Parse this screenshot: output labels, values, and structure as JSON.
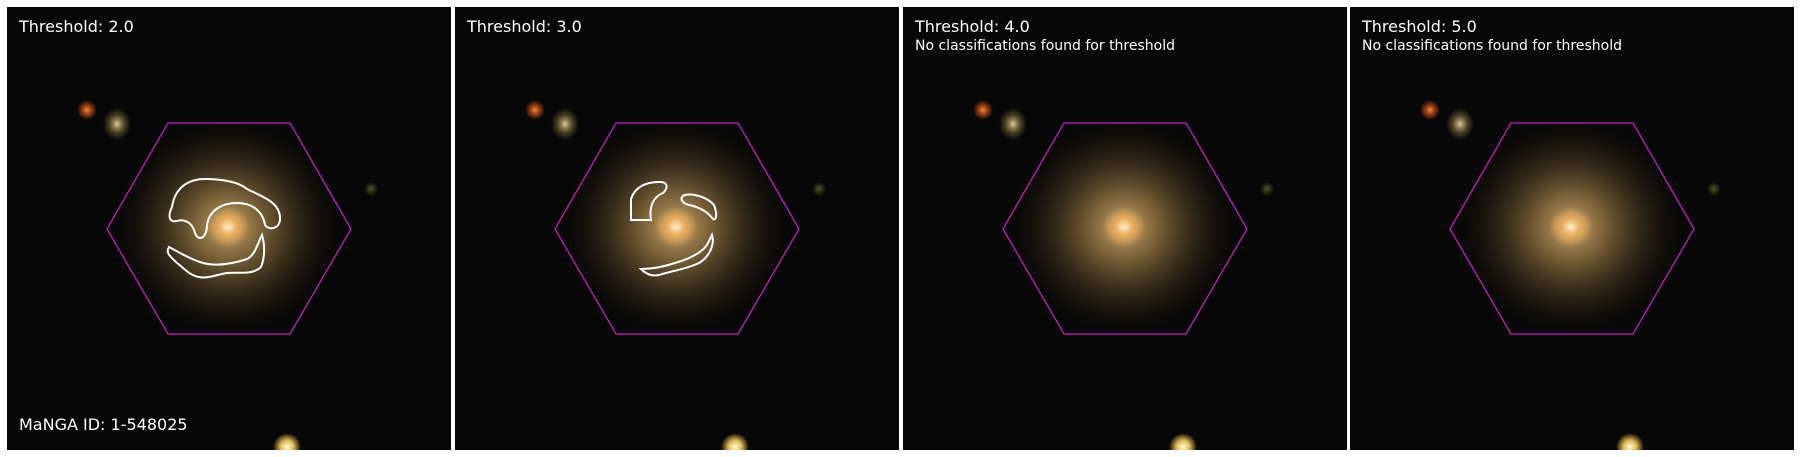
{
  "panels": [
    {
      "title": "Threshold: 2.0",
      "message": "",
      "footer": "MaNGA ID: 1-548025",
      "arms": "full"
    },
    {
      "title": "Threshold: 3.0",
      "message": "",
      "footer": "",
      "arms": "partial"
    },
    {
      "title": "Threshold: 4.0",
      "message": "No classifications found for threshold",
      "footer": "",
      "arms": "none"
    },
    {
      "title": "Threshold: 5.0",
      "message": "No classifications found for threshold",
      "footer": "",
      "arms": "none"
    }
  ],
  "colors": {
    "hexagon": "#c020c0",
    "contour": "#ffffff",
    "background": "#070707",
    "galaxy_core": "#ffe0a0",
    "galaxy_halo": "#8a6a38"
  }
}
